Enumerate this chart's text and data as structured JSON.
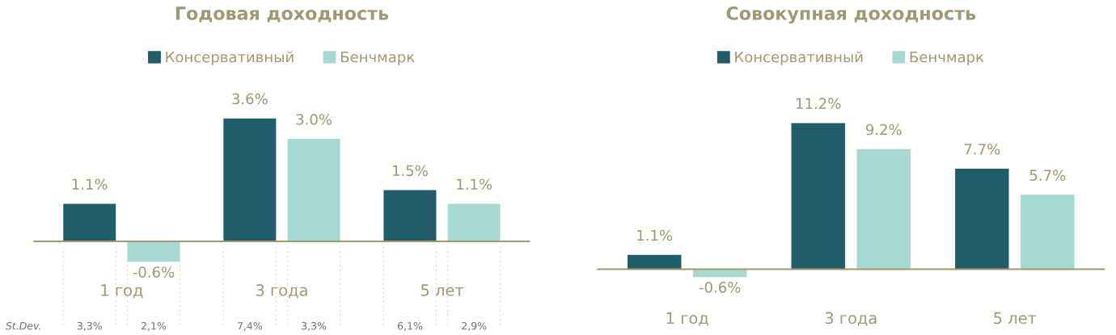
{
  "chart_data": [
    {
      "type": "bar",
      "title": "Годовая доходность",
      "categories": [
        "1 год",
        "3 года",
        "5 лет"
      ],
      "series": [
        {
          "name": "Консервативный",
          "color": "#225c68",
          "values": [
            1.1,
            3.6,
            1.5
          ],
          "value_labels": [
            "1.1%",
            "3.6%",
            "1.5%"
          ]
        },
        {
          "name": "Бенчмарк",
          "color": "#a8d8d2",
          "values": [
            -0.6,
            3.0,
            1.1
          ],
          "value_labels": [
            "-0.6%",
            "3.0%",
            "1.1%"
          ]
        }
      ],
      "ref_lines": [
        {
          "axis": "y",
          "value": 0,
          "color": "#a09870"
        }
      ],
      "legend": "top",
      "annotations": [
        "St.Dev.",
        "3,3%",
        "2,1%",
        "7,4%",
        "3,3%",
        "6,1%",
        "2,9%"
      ]
    },
    {
      "type": "bar",
      "title": "Совокупная доходность",
      "categories": [
        "1 год",
        "3 года",
        "5 лет"
      ],
      "series": [
        {
          "name": "Консервативный",
          "color": "#225c68",
          "values": [
            1.1,
            11.2,
            7.7
          ],
          "value_labels": [
            "1.1%",
            "11.2%",
            "7.7%"
          ]
        },
        {
          "name": "Бенчмарк",
          "color": "#a8d8d2",
          "values": [
            -0.6,
            9.2,
            5.7
          ],
          "value_labels": [
            "-0.6%",
            "9.2%",
            "5.7%"
          ]
        }
      ],
      "ref_lines": [
        {
          "axis": "y",
          "value": 0,
          "color": "#a09870"
        }
      ],
      "legend": "top"
    }
  ]
}
